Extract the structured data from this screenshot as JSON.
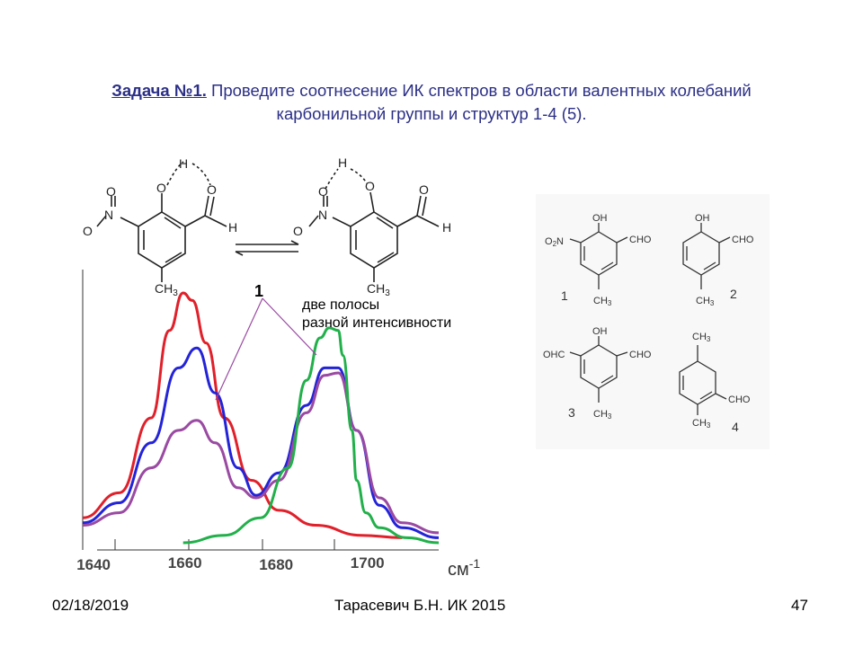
{
  "title": {
    "task_label": "Задача №1.",
    "line1_rest": " Проведите соотнесение ИК спектров в области валентных колебаний",
    "line2": "карбонильной группы и структур 1-4 (5)."
  },
  "tautomer": {
    "left": {
      "h_label": "H",
      "o_label": "O",
      "n_label": "N",
      "h_ald_label": "H",
      "ch3_label": "CH3"
    },
    "right": {
      "h_label": "H",
      "o_label": "O",
      "n_label": "N",
      "h_ald_label": "H",
      "ch3_label": "CH3"
    }
  },
  "spectrum": {
    "annotation_number": "1",
    "annotation_text_line1": "две полосы",
    "annotation_text_line2": "разной интенсивности",
    "x_tick_labels": [
      "1640",
      "1660",
      "1680",
      "1700"
    ],
    "x_unit": "см",
    "x_unit_exp": "-1",
    "curve_colors": {
      "red": "#e0202a",
      "blue": "#2323d8",
      "purple": "#9a4aa2",
      "green": "#21b04a"
    }
  },
  "chart_data": {
    "type": "line",
    "x_tick_labels": [
      "1640",
      "1660",
      "1680",
      "1700"
    ],
    "xlabel": "см-1",
    "xlim": [
      1637,
      1715
    ],
    "series": [
      {
        "color": "red",
        "x": [
          1637,
          1645,
          1652,
          1656,
          1659,
          1661,
          1664,
          1668,
          1674,
          1680,
          1688,
          1698,
          1707
        ],
        "y": [
          0.1,
          0.2,
          0.5,
          0.85,
          1.0,
          0.97,
          0.8,
          0.5,
          0.25,
          0.13,
          0.07,
          0.03,
          0.02
        ]
      },
      {
        "color": "blue",
        "x": [
          1637,
          1645,
          1652,
          1658,
          1662,
          1666,
          1671,
          1675,
          1680,
          1686,
          1690,
          1693,
          1697,
          1702,
          1707,
          1715
        ],
        "y": [
          0.08,
          0.16,
          0.4,
          0.7,
          0.78,
          0.6,
          0.3,
          0.19,
          0.28,
          0.55,
          0.7,
          0.7,
          0.45,
          0.15,
          0.06,
          0.02
        ]
      },
      {
        "color": "purple",
        "x": [
          1637,
          1645,
          1652,
          1658,
          1662,
          1666,
          1671,
          1675,
          1680,
          1686,
          1690,
          1693,
          1697,
          1702,
          1707,
          1715
        ],
        "y": [
          0.07,
          0.12,
          0.3,
          0.45,
          0.49,
          0.4,
          0.22,
          0.18,
          0.25,
          0.52,
          0.67,
          0.68,
          0.45,
          0.18,
          0.08,
          0.04
        ]
      },
      {
        "color": "green",
        "x": [
          1659,
          1668,
          1676,
          1682,
          1686,
          1689,
          1691,
          1693,
          1694,
          1696,
          1697,
          1699,
          1702,
          1708,
          1715
        ],
        "y": [
          0.0,
          0.03,
          0.1,
          0.3,
          0.65,
          0.82,
          0.86,
          0.85,
          0.75,
          0.45,
          0.25,
          0.12,
          0.06,
          0.02,
          0.0
        ]
      }
    ]
  },
  "structures": {
    "s1": {
      "oh": "OH",
      "no2": "O2N",
      "cho": "CHO",
      "ch3": "CH3",
      "number": "1"
    },
    "s2": {
      "oh": "OH",
      "cho": "CHO",
      "ch3": "CH3",
      "number": "2"
    },
    "s3": {
      "oh": "OH",
      "cho_left": "OHC",
      "cho_right": "CHO",
      "ch3": "CH3",
      "number": "3"
    },
    "s4": {
      "ch3_top": "CH3",
      "cho": "CHO",
      "ch3_bottom": "CH3",
      "number": "4"
    }
  },
  "footer": {
    "date": "02/18/2019",
    "author": "Тарасевич Б.Н.  ИК 2015",
    "page": "47"
  }
}
